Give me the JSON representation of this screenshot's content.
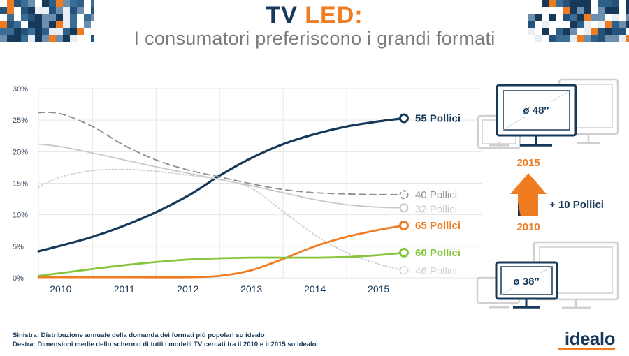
{
  "header": {
    "title_main": "TV ",
    "title_accent": "LED:",
    "subtitle": "I consumatori preferiscono i grandi formati"
  },
  "colors": {
    "navy": "#16395a",
    "orange": "#f07c22",
    "green": "#86c63c",
    "gray_dark": "#8e8e8e",
    "gray_light": "#c8c8c8",
    "gray_lighter": "#cfcfcf"
  },
  "chart_data": {
    "type": "line",
    "title": "",
    "xlabel": "",
    "ylabel": "",
    "x": [
      2010,
      2011,
      2012,
      2013,
      2014,
      2015
    ],
    "xlim": [
      2009.65,
      2015.4
    ],
    "ylim": [
      0,
      30
    ],
    "yticks": [
      "0%",
      "5%",
      "10%",
      "15%",
      "20%",
      "25%",
      "30%"
    ],
    "grid": true,
    "series": [
      {
        "name": "55 Pollici",
        "label_number": "55",
        "label_unit": "Pollici",
        "color": "#16395a",
        "style": "solid",
        "weight": 3.2,
        "emphasis": true,
        "points": [
          [
            2009.65,
            4.2
          ],
          [
            2010.5,
            6.5
          ],
          [
            2011.3,
            9.5
          ],
          [
            2012.0,
            13.0
          ],
          [
            2012.5,
            16.2
          ],
          [
            2013.0,
            19.0
          ],
          [
            2013.5,
            21.2
          ],
          [
            2014.0,
            22.8
          ],
          [
            2014.5,
            24.0
          ],
          [
            2015.0,
            24.8
          ],
          [
            2015.4,
            25.3
          ]
        ]
      },
      {
        "name": "40 Pollici",
        "label_number": "40",
        "label_unit": "Pollici",
        "color": "#8e8e8e",
        "style": "dashed",
        "weight": 1.8,
        "emphasis": false,
        "points": [
          [
            2009.65,
            26.2
          ],
          [
            2010.0,
            26.0
          ],
          [
            2010.5,
            24.0
          ],
          [
            2011.0,
            21.0
          ],
          [
            2011.5,
            18.7
          ],
          [
            2012.0,
            17.1
          ],
          [
            2012.5,
            16.0
          ],
          [
            2013.0,
            14.9
          ],
          [
            2013.5,
            14.0
          ],
          [
            2014.0,
            13.5
          ],
          [
            2014.5,
            13.3
          ],
          [
            2015.0,
            13.2
          ],
          [
            2015.4,
            13.2
          ]
        ]
      },
      {
        "name": "32 Pollici",
        "label_number": "32",
        "label_unit": "Pollici",
        "color": "#c8c8c8",
        "style": "solid",
        "weight": 1.8,
        "emphasis": false,
        "points": [
          [
            2009.65,
            21.2
          ],
          [
            2010.0,
            20.8
          ],
          [
            2010.5,
            19.8
          ],
          [
            2011.0,
            18.7
          ],
          [
            2011.5,
            17.6
          ],
          [
            2012.0,
            16.6
          ],
          [
            2012.5,
            15.6
          ],
          [
            2013.0,
            14.6
          ],
          [
            2013.5,
            13.5
          ],
          [
            2014.0,
            12.4
          ],
          [
            2014.5,
            11.6
          ],
          [
            2015.0,
            11.2
          ],
          [
            2015.4,
            11.1
          ]
        ]
      },
      {
        "name": "46 Pollici",
        "label_number": "46",
        "label_unit": "Pollici",
        "color": "#cfcfcf",
        "style": "dotted",
        "weight": 1.8,
        "emphasis": false,
        "points": [
          [
            2009.65,
            14.4
          ],
          [
            2010.0,
            16.0
          ],
          [
            2010.5,
            17.0
          ],
          [
            2011.0,
            17.2
          ],
          [
            2011.5,
            16.9
          ],
          [
            2012.0,
            16.3
          ],
          [
            2012.5,
            15.6
          ],
          [
            2013.0,
            14.2
          ],
          [
            2013.5,
            10.5
          ],
          [
            2014.0,
            6.8
          ],
          [
            2014.5,
            4.0
          ],
          [
            2015.0,
            2.2
          ],
          [
            2015.4,
            1.2
          ]
        ]
      },
      {
        "name": "65 Pollici",
        "label_number": "65",
        "label_unit": "Pollici",
        "color": "#f07c22",
        "style": "solid",
        "weight": 2.8,
        "emphasis": true,
        "points": [
          [
            2009.65,
            0.1
          ],
          [
            2011.0,
            0.1
          ],
          [
            2012.0,
            0.1
          ],
          [
            2012.5,
            0.3
          ],
          [
            2013.0,
            1.2
          ],
          [
            2013.5,
            3.0
          ],
          [
            2014.0,
            5.0
          ],
          [
            2014.5,
            6.5
          ],
          [
            2015.0,
            7.6
          ],
          [
            2015.4,
            8.3
          ]
        ]
      },
      {
        "name": "60 Pollici",
        "label_number": "60",
        "label_unit": "Pollici",
        "color": "#86c63c",
        "style": "solid",
        "weight": 2.8,
        "emphasis": true,
        "points": [
          [
            2009.65,
            0.3
          ],
          [
            2010.5,
            1.4
          ],
          [
            2011.0,
            2.0
          ],
          [
            2011.5,
            2.5
          ],
          [
            2012.0,
            2.9
          ],
          [
            2012.5,
            3.1
          ],
          [
            2013.0,
            3.2
          ],
          [
            2013.5,
            3.2
          ],
          [
            2014.0,
            3.2
          ],
          [
            2014.5,
            3.3
          ],
          [
            2015.0,
            3.6
          ],
          [
            2015.4,
            4.0
          ]
        ]
      }
    ]
  },
  "side_panel": {
    "tv_large_label": "ø 48″",
    "tv_small_label": "ø 38″",
    "year_top": "2015",
    "year_bottom": "2010",
    "change": "+ 10 Pollici"
  },
  "footnotes": {
    "line1": "Sinistra: Distribuzione  annuale della domanda dei formati più popolari su idealo",
    "line2": "Destra: Dimensioni medie dello schermo di tutti i modelli TV cercati tra il 2010 e il 2015 su idealo."
  },
  "brand": {
    "logo": "idealo"
  }
}
